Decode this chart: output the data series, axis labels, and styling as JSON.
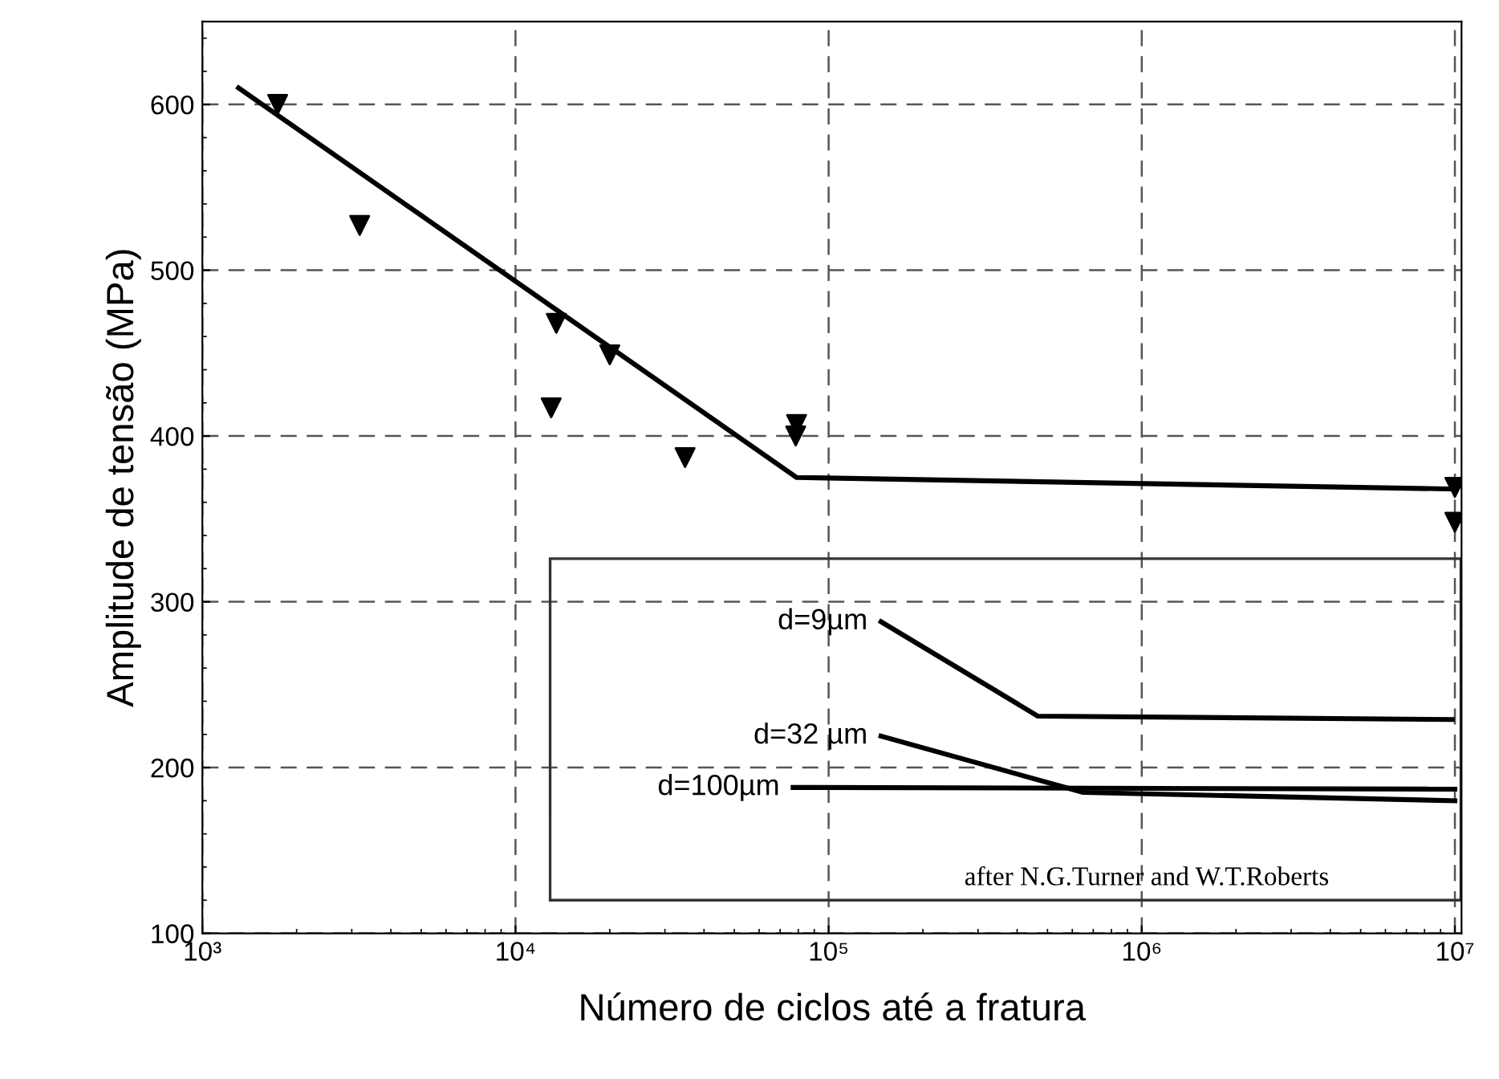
{
  "chart_data": {
    "type": "scatter",
    "xlabel": "Número de ciclos até a fratura",
    "ylabel": "Amplitude de tensão (MPa)",
    "log": "x",
    "xlim": [
      1000,
      10500000
    ],
    "ylim": [
      100,
      650
    ],
    "xticks": [
      {
        "value": 1000,
        "label": "10³"
      },
      {
        "value": 10000,
        "label": "10⁴"
      },
      {
        "value": 100000,
        "label": "10⁵"
      },
      {
        "value": 1000000,
        "label": "10⁶"
      },
      {
        "value": 10000000,
        "label": "10⁷"
      }
    ],
    "yticks": [
      100,
      200,
      300,
      400,
      500,
      600
    ],
    "grid": true,
    "legend": false,
    "annotations": [
      "after N.G.Turner and W.T.Roberts"
    ],
    "series": [
      {
        "marker": "triangle",
        "color": "#000000",
        "x": [
          1740,
          3180,
          13500,
          13000,
          20000,
          34800,
          78500,
          79000,
          10000000,
          10000000
        ],
        "values": [
          600,
          527,
          468,
          417,
          449,
          387,
          400,
          407,
          369,
          348
        ]
      },
      {
        "type": "line",
        "color": "#000000",
        "x": [
          1305,
          79000,
          10000000
        ],
        "values": [
          610,
          375,
          368
        ]
      },
      {
        "type": "line",
        "name": "d=9µm",
        "color": "#000000",
        "x": [
          147000,
          466000,
          9800000
        ],
        "values": [
          288,
          231,
          229
        ]
      },
      {
        "type": "line",
        "name": "d=32 µm",
        "color": "#000000",
        "x": [
          147000,
          650000,
          10000000
        ],
        "values": [
          219,
          185,
          180
        ]
      },
      {
        "type": "line",
        "name": "d=100µm",
        "color": "#000000",
        "x": [
          77000,
          10000000
        ],
        "values": [
          188,
          187
        ]
      }
    ]
  }
}
